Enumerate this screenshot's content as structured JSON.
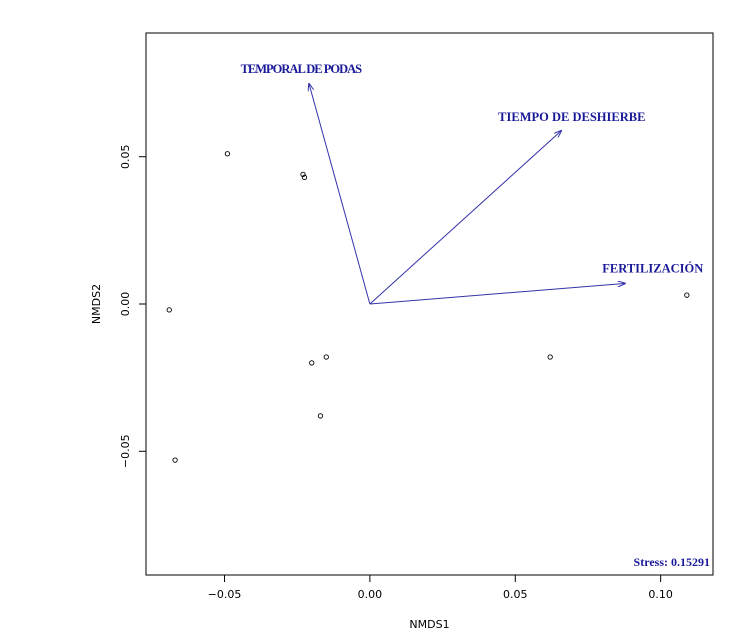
{
  "chart_data": {
    "type": "scatter",
    "xlabel": "NMDS1",
    "ylabel": "NMDS2",
    "xlim": [
      -0.077,
      0.118
    ],
    "ylim": [
      -0.092,
      0.092
    ],
    "x_ticks": [
      -0.05,
      0.0,
      0.05,
      0.1
    ],
    "x_tick_labels": [
      "−0.05",
      "0.00",
      "0.05",
      "0.10"
    ],
    "y_ticks": [
      -0.05,
      0.0,
      0.05
    ],
    "y_tick_labels": [
      "−0.05",
      "0.00",
      "0.05"
    ],
    "points": [
      {
        "x": -0.049,
        "y": 0.051
      },
      {
        "x": -0.023,
        "y": 0.044
      },
      {
        "x": -0.0225,
        "y": 0.043
      },
      {
        "x": -0.069,
        "y": -0.002
      },
      {
        "x": -0.02,
        "y": -0.02
      },
      {
        "x": -0.015,
        "y": -0.018
      },
      {
        "x": -0.017,
        "y": -0.038
      },
      {
        "x": -0.067,
        "y": -0.053
      },
      {
        "x": 0.062,
        "y": -0.018
      },
      {
        "x": 0.109,
        "y": 0.003
      }
    ],
    "vectors": [
      {
        "label": "TEMPORAL DE PODAS",
        "x": -0.021,
        "y": 0.075
      },
      {
        "label": "TIEMPO DE DESHIERBE",
        "x": 0.066,
        "y": 0.059
      },
      {
        "label": "FERTILIZACIÓN",
        "x": 0.088,
        "y": 0.007
      }
    ],
    "annotation": "Stress: 0.15291",
    "colors": {
      "vectors": "#3333aa",
      "labels": "#1a1a99",
      "points": "#000000"
    }
  }
}
